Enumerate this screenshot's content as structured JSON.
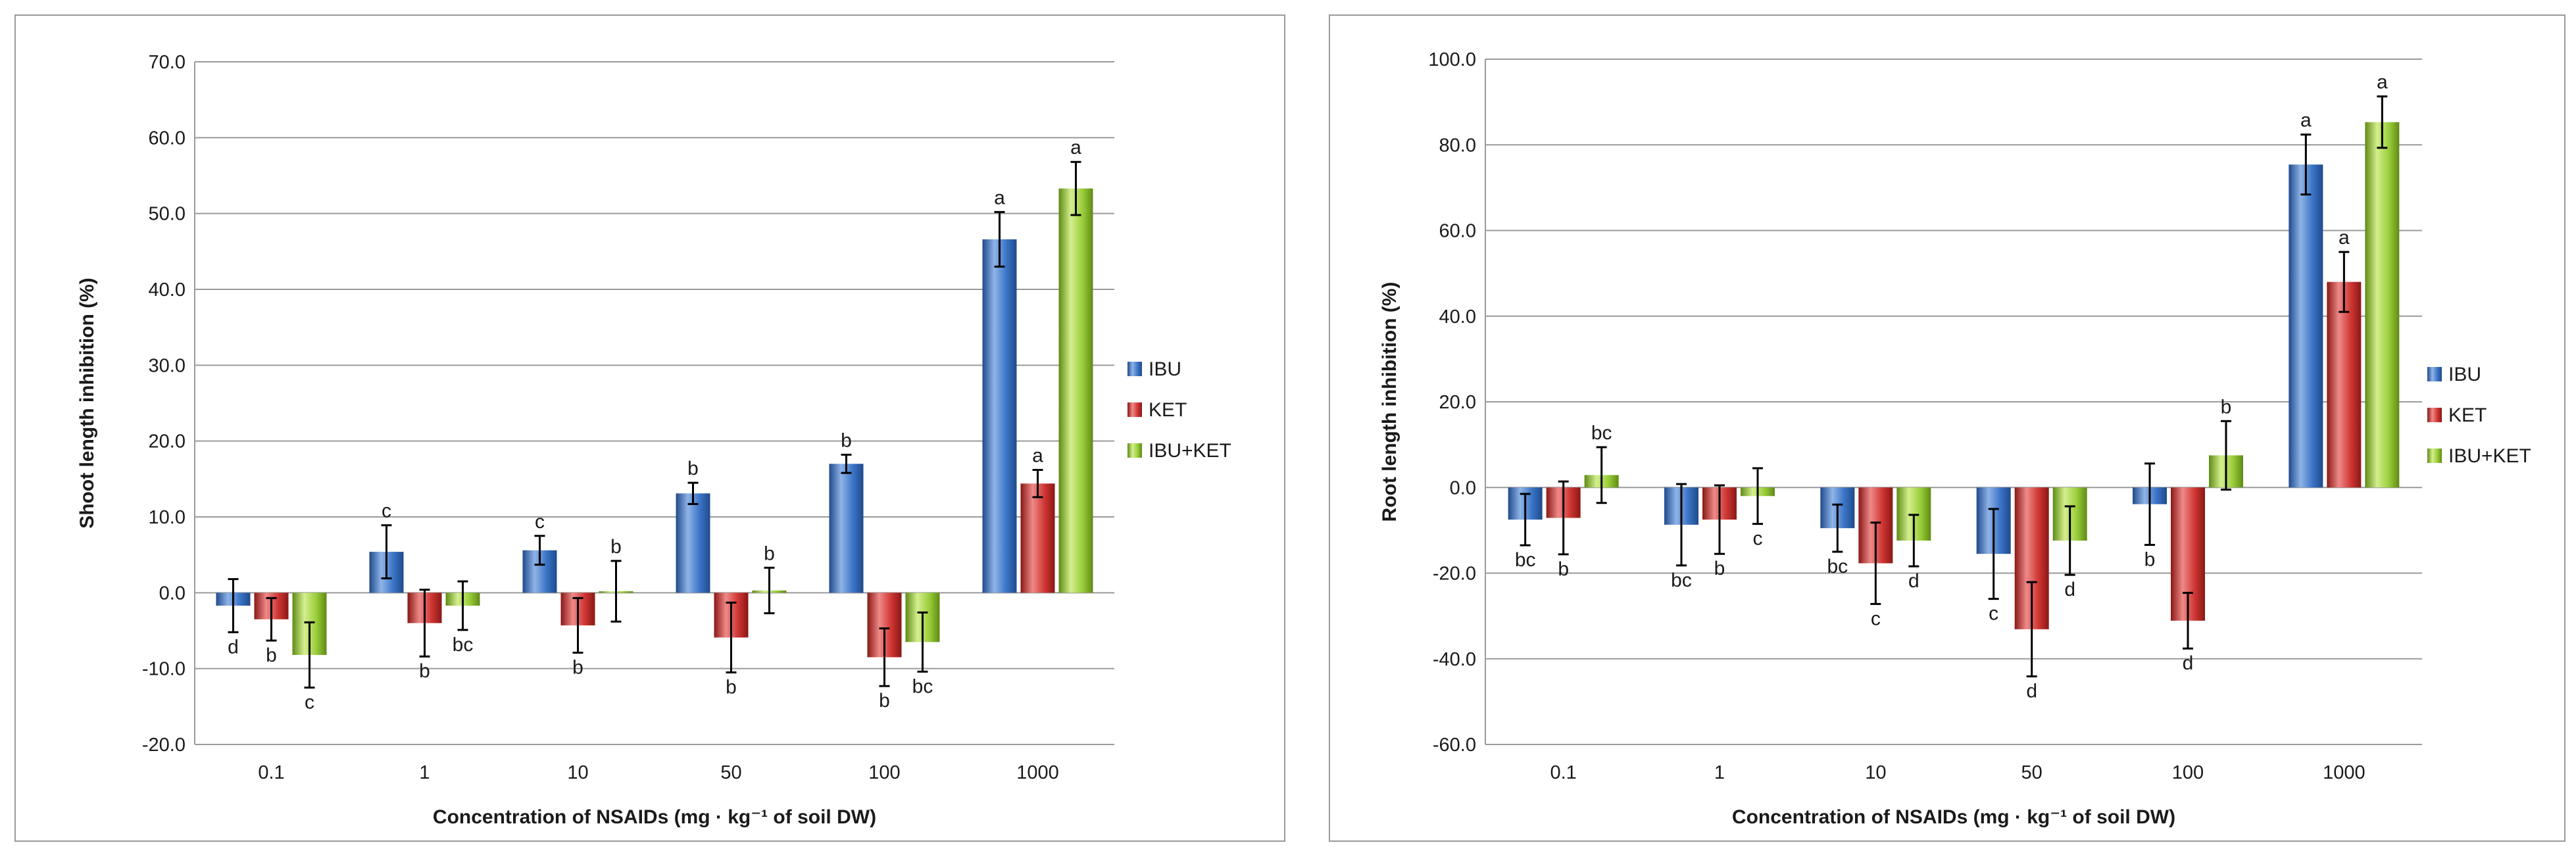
{
  "colors": {
    "IBU": {
      "light": "#8fb4e8",
      "base": "#3a74c6",
      "dark": "#1f4a8c"
    },
    "KET": {
      "light": "#ee8a88",
      "base": "#cf3633",
      "dark": "#8a1715"
    },
    "IBU+KET": {
      "light": "#d4ef8f",
      "base": "#9acd3a",
      "dark": "#5f8a14"
    },
    "grid": "#9a9a9a",
    "errorbar": "#000000"
  },
  "chart_data": [
    {
      "type": "bar",
      "title": "",
      "xlabel": "Concentration of NSAIDs (mg · kg⁻¹ of soil DW)",
      "ylabel": "Shoot length inhibition (%)",
      "ylim": [
        -20,
        70
      ],
      "ystep": 10,
      "ytick_labels": [
        "-20.0",
        "-10.0",
        "0.0",
        "10.0",
        "20.0",
        "30.0",
        "40.0",
        "50.0",
        "60.0",
        "70.0"
      ],
      "categories": [
        "0.1",
        "1",
        "10",
        "50",
        "100",
        "1000"
      ],
      "legend": [
        "IBU",
        "KET",
        "IBU+KET"
      ],
      "legend_position": "right",
      "series": [
        {
          "name": "IBU",
          "values": [
            -1.7,
            5.4,
            5.6,
            13.1,
            17.0,
            46.6
          ],
          "errors": [
            3.5,
            3.5,
            1.9,
            1.4,
            1.2,
            3.6
          ],
          "letters": [
            "d",
            "c",
            "c",
            "b",
            "b",
            "a"
          ]
        },
        {
          "name": "KET",
          "values": [
            -3.5,
            -4.0,
            -4.3,
            -5.9,
            -8.5,
            14.4
          ],
          "errors": [
            2.8,
            4.4,
            3.6,
            4.6,
            3.8,
            1.8
          ],
          "letters": [
            "b",
            "b",
            "b",
            "b",
            "b",
            "a"
          ]
        },
        {
          "name": "IBU+KET",
          "values": [
            -8.2,
            -1.7,
            0.2,
            0.3,
            -6.5,
            53.3
          ],
          "errors": [
            4.3,
            3.2,
            4.0,
            3.0,
            3.9,
            3.5
          ],
          "letters": [
            "c",
            "bc",
            "b",
            "b",
            "bc",
            "a"
          ]
        }
      ]
    },
    {
      "type": "bar",
      "title": "",
      "xlabel": "Concentration of NSAIDs (mg · kg⁻¹ of soil DW)",
      "ylabel": "Root length inhibition (%)",
      "ylim": [
        -60,
        100
      ],
      "ystep": 20,
      "ytick_labels": [
        "-60.0",
        "-40.0",
        "-20.0",
        "0.0",
        "20.0",
        "40.0",
        "60.0",
        "80.0",
        "100.0"
      ],
      "categories": [
        "0.1",
        "1",
        "10",
        "50",
        "100",
        "1000"
      ],
      "legend": [
        "IBU",
        "KET",
        "IBU+KET"
      ],
      "legend_position": "right",
      "series": [
        {
          "name": "IBU",
          "values": [
            -7.5,
            -8.7,
            -9.5,
            -15.5,
            -3.9,
            75.4
          ],
          "errors": [
            6.0,
            9.5,
            5.5,
            10.5,
            9.5,
            7.0
          ],
          "letters": [
            "bc",
            "bc",
            "bc",
            "c",
            "b",
            "a"
          ]
        },
        {
          "name": "KET",
          "values": [
            -7.1,
            -7.5,
            -17.7,
            -33.1,
            -31.1,
            48.0
          ],
          "errors": [
            8.5,
            8.0,
            9.5,
            11.0,
            6.5,
            7.0
          ],
          "letters": [
            "b",
            "b",
            "c",
            "d",
            "d",
            "a"
          ]
        },
        {
          "name": "IBU+KET",
          "values": [
            2.9,
            -2.0,
            -12.4,
            -12.4,
            7.5,
            85.3
          ],
          "errors": [
            6.5,
            6.5,
            6.0,
            8.0,
            8.0,
            6.0
          ],
          "letters": [
            "bc",
            "c",
            "d",
            "d",
            "b",
            "a"
          ]
        }
      ]
    }
  ]
}
